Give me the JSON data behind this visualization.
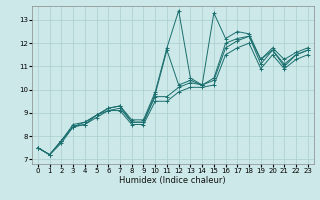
{
  "xlabel": "Humidex (Indice chaleur)",
  "ylabel": "",
  "bg_color": "#cce8e8",
  "grid_color": "#aacece",
  "line_color": "#1a6e6e",
  "xlim": [
    -0.5,
    23.5
  ],
  "ylim": [
    6.8,
    13.6
  ],
  "yticks": [
    7,
    8,
    9,
    10,
    11,
    12,
    13
  ],
  "xticks": [
    0,
    1,
    2,
    3,
    4,
    5,
    6,
    7,
    8,
    9,
    10,
    11,
    12,
    13,
    14,
    15,
    16,
    17,
    18,
    19,
    20,
    21,
    22,
    23
  ],
  "series": [
    {
      "x": [
        0,
        1,
        2,
        3,
        4,
        5,
        6,
        7,
        8,
        9,
        10,
        11,
        12,
        13,
        14,
        15,
        16,
        17,
        18,
        19,
        20,
        21,
        22,
        23
      ],
      "y": [
        7.5,
        7.2,
        7.8,
        8.5,
        8.6,
        8.9,
        9.2,
        9.3,
        8.7,
        8.7,
        9.9,
        11.8,
        13.4,
        10.5,
        10.2,
        13.3,
        12.2,
        12.5,
        12.4,
        11.3,
        11.8,
        11.3,
        11.6,
        11.8
      ]
    },
    {
      "x": [
        0,
        1,
        2,
        3,
        4,
        5,
        6,
        7,
        8,
        9,
        10,
        11,
        12,
        13,
        14,
        15,
        16,
        17,
        18,
        19,
        20,
        21,
        22,
        23
      ],
      "y": [
        7.5,
        7.2,
        7.8,
        8.4,
        8.6,
        8.9,
        9.2,
        9.3,
        8.6,
        8.6,
        9.8,
        11.7,
        10.2,
        10.4,
        10.2,
        10.5,
        12.0,
        12.2,
        12.3,
        11.3,
        11.7,
        11.1,
        11.5,
        11.7
      ]
    },
    {
      "x": [
        0,
        1,
        2,
        3,
        4,
        5,
        6,
        7,
        8,
        9,
        10,
        11,
        12,
        13,
        14,
        15,
        16,
        17,
        18,
        19,
        20,
        21,
        22,
        23
      ],
      "y": [
        7.5,
        7.2,
        7.8,
        8.4,
        8.5,
        8.9,
        9.1,
        9.2,
        8.6,
        8.6,
        9.7,
        9.7,
        10.1,
        10.3,
        10.2,
        10.4,
        11.8,
        12.1,
        12.3,
        11.1,
        11.7,
        11.0,
        11.5,
        11.7
      ]
    },
    {
      "x": [
        0,
        1,
        2,
        3,
        4,
        5,
        6,
        7,
        8,
        9,
        10,
        11,
        12,
        13,
        14,
        15,
        16,
        17,
        18,
        19,
        20,
        21,
        22,
        23
      ],
      "y": [
        7.5,
        7.2,
        7.7,
        8.4,
        8.5,
        8.8,
        9.1,
        9.1,
        8.5,
        8.5,
        9.5,
        9.5,
        9.9,
        10.1,
        10.1,
        10.2,
        11.5,
        11.8,
        12.0,
        10.9,
        11.5,
        10.9,
        11.3,
        11.5
      ]
    }
  ],
  "xlabel_fontsize": 6.0,
  "tick_fontsize": 5.0
}
